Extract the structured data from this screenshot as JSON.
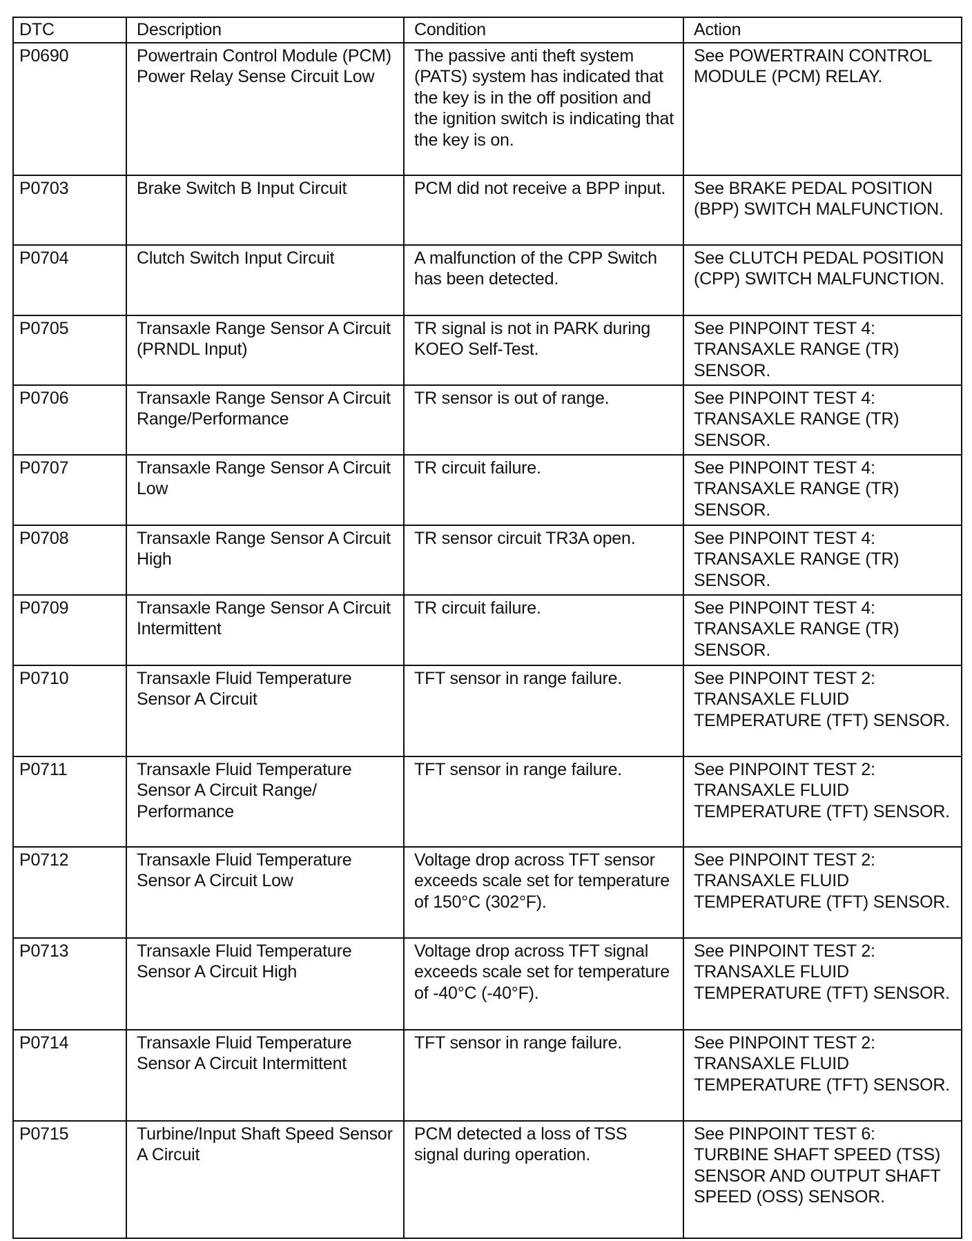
{
  "headers": [
    "DTC",
    "Description",
    "Condition",
    "Action"
  ],
  "rows": [
    {
      "dtc": "P0690",
      "description": "Powertrain Control Module (PCM) Power Relay Sense Circuit Low",
      "condition": "The passive anti theft system (PATS) system has indicated that the key is in the off position and the ignition switch is indicating that the key is on.",
      "action": "See POWERTRAIN CONTROL MODULE (PCM) RELAY."
    },
    {
      "dtc": "P0703",
      "description": "Brake Switch B Input Circuit",
      "condition": "PCM did not receive a BPP input.",
      "action": "See BRAKE PEDAL POSITION (BPP) SWITCH MALFUNCTION."
    },
    {
      "dtc": "P0704",
      "description": "Clutch Switch Input Circuit",
      "condition": "A malfunction of the CPP Switch has been detected.",
      "action": "See CLUTCH PEDAL POSITION (CPP) SWITCH MALFUNCTION."
    },
    {
      "dtc": "P0705",
      "description": "Transaxle Range Sensor A Circuit (PRNDL Input)",
      "condition": "TR signal is not in PARK during KOEO Self-Test.",
      "action": "See PINPOINT TEST 4: TRANSAXLE RANGE (TR) SENSOR."
    },
    {
      "dtc": "P0706",
      "description": "Transaxle Range Sensor A Circuit Range/Performance",
      "condition": "TR sensor is out of range.",
      "action": "See PINPOINT TEST 4: TRANSAXLE RANGE (TR) SENSOR."
    },
    {
      "dtc": "P0707",
      "description": "Transaxle Range Sensor A Circuit Low",
      "condition": "TR circuit failure.",
      "action": "See PINPOINT TEST 4: TRANSAXLE RANGE (TR) SENSOR."
    },
    {
      "dtc": "P0708",
      "description": "Transaxle Range Sensor A Circuit High",
      "condition": "TR sensor circuit TR3A open.",
      "action": "See PINPOINT TEST 4: TRANSAXLE RANGE (TR) SENSOR."
    },
    {
      "dtc": "P0709",
      "description": "Transaxle Range Sensor A Circuit Intermittent",
      "condition": "TR circuit failure.",
      "action": "See PINPOINT TEST 4: TRANSAXLE RANGE (TR) SENSOR."
    },
    {
      "dtc": "P0710",
      "description": "Transaxle Fluid Temperature Sensor A Circuit",
      "condition": "TFT sensor in range failure.",
      "action": "See PINPOINT TEST 2: TRANSAXLE FLUID TEMPERATURE (TFT) SENSOR."
    },
    {
      "dtc": "P0711",
      "description": "Transaxle Fluid Temperature Sensor A Circuit Range/ Performance",
      "condition": "TFT sensor in range failure.",
      "action": "See PINPOINT TEST 2: TRANSAXLE FLUID TEMPERATURE (TFT) SENSOR."
    },
    {
      "dtc": "P0712",
      "description": "Transaxle Fluid Temperature Sensor A Circuit Low",
      "condition": "Voltage drop across TFT sensor exceeds scale set for temperature of 150°C (302°F).",
      "action": "See PINPOINT TEST 2: TRANSAXLE FLUID TEMPERATURE (TFT) SENSOR."
    },
    {
      "dtc": "P0713",
      "description": "Transaxle Fluid Temperature Sensor A Circuit High",
      "condition": "Voltage drop across TFT signal exceeds scale set for temperature of -40°C (-40°F).",
      "action": "See PINPOINT TEST 2: TRANSAXLE FLUID TEMPERATURE (TFT) SENSOR."
    },
    {
      "dtc": "P0714",
      "description": "Transaxle Fluid Temperature Sensor A Circuit Intermittent",
      "condition": "TFT sensor in range failure.",
      "action": "See PINPOINT TEST 2: TRANSAXLE FLUID TEMPERATURE (TFT) SENSOR."
    },
    {
      "dtc": "P0715",
      "description": "Turbine/Input Shaft Speed Sensor A Circuit",
      "condition": "PCM detected a loss of TSS signal during operation.",
      "action": "See PINPOINT TEST 6: TURBINE SHAFT SPEED (TSS) SENSOR AND OUTPUT SHAFT SPEED (OSS) SENSOR."
    }
  ]
}
